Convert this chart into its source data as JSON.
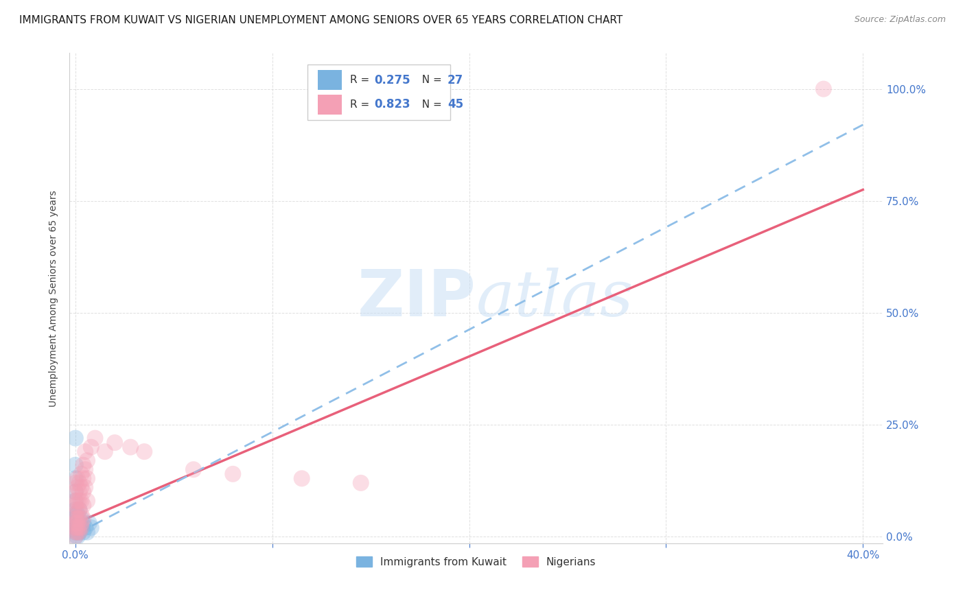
{
  "title": "IMMIGRANTS FROM KUWAIT VS NIGERIAN UNEMPLOYMENT AMONG SENIORS OVER 65 YEARS CORRELATION CHART",
  "source": "Source: ZipAtlas.com",
  "ylabel": "Unemployment Among Seniors over 65 years",
  "x_tick_labels_show": [
    "0.0%",
    "",
    "",
    "",
    "40.0%"
  ],
  "x_ticks": [
    0.0,
    0.1,
    0.2,
    0.3,
    0.4
  ],
  "y_tick_labels": [
    "0.0%",
    "25.0%",
    "50.0%",
    "75.0%",
    "100.0%"
  ],
  "y_ticks": [
    0.0,
    0.25,
    0.5,
    0.75,
    1.0
  ],
  "xlim": [
    -0.003,
    0.41
  ],
  "ylim": [
    -0.015,
    1.08
  ],
  "kuwait_scatter": [
    [
      0.0,
      0.22
    ],
    [
      0.0,
      0.16
    ],
    [
      0.0,
      0.13
    ],
    [
      0.0,
      0.1
    ],
    [
      0.0,
      0.08
    ],
    [
      0.0,
      0.06
    ],
    [
      0.0,
      0.05
    ],
    [
      0.0,
      0.04
    ],
    [
      0.0,
      0.03
    ],
    [
      0.0,
      0.02
    ],
    [
      0.0,
      0.01
    ],
    [
      0.0,
      0.0
    ],
    [
      0.001,
      0.05
    ],
    [
      0.001,
      0.02
    ],
    [
      0.001,
      0.01
    ],
    [
      0.001,
      0.0
    ],
    [
      0.002,
      0.06
    ],
    [
      0.002,
      0.03
    ],
    [
      0.002,
      0.01
    ],
    [
      0.003,
      0.04
    ],
    [
      0.003,
      0.02
    ],
    [
      0.004,
      0.03
    ],
    [
      0.004,
      0.01
    ],
    [
      0.005,
      0.02
    ],
    [
      0.006,
      0.01
    ],
    [
      0.007,
      0.03
    ],
    [
      0.008,
      0.02
    ]
  ],
  "nigerian_scatter": [
    [
      0.0,
      0.12
    ],
    [
      0.0,
      0.1
    ],
    [
      0.0,
      0.08
    ],
    [
      0.0,
      0.07
    ],
    [
      0.0,
      0.05
    ],
    [
      0.0,
      0.04
    ],
    [
      0.0,
      0.03
    ],
    [
      0.0,
      0.02
    ],
    [
      0.0,
      0.01
    ],
    [
      0.0,
      0.0
    ],
    [
      0.001,
      0.13
    ],
    [
      0.001,
      0.11
    ],
    [
      0.001,
      0.08
    ],
    [
      0.001,
      0.06
    ],
    [
      0.001,
      0.04
    ],
    [
      0.001,
      0.03
    ],
    [
      0.001,
      0.02
    ],
    [
      0.001,
      0.01
    ],
    [
      0.002,
      0.12
    ],
    [
      0.002,
      0.1
    ],
    [
      0.002,
      0.08
    ],
    [
      0.002,
      0.06
    ],
    [
      0.002,
      0.04
    ],
    [
      0.002,
      0.02
    ],
    [
      0.002,
      0.01
    ],
    [
      0.003,
      0.14
    ],
    [
      0.003,
      0.11
    ],
    [
      0.003,
      0.08
    ],
    [
      0.003,
      0.05
    ],
    [
      0.003,
      0.03
    ],
    [
      0.003,
      0.02
    ],
    [
      0.004,
      0.16
    ],
    [
      0.004,
      0.13
    ],
    [
      0.004,
      0.1
    ],
    [
      0.004,
      0.07
    ],
    [
      0.004,
      0.04
    ],
    [
      0.005,
      0.19
    ],
    [
      0.005,
      0.15
    ],
    [
      0.005,
      0.11
    ],
    [
      0.006,
      0.17
    ],
    [
      0.006,
      0.13
    ],
    [
      0.006,
      0.08
    ],
    [
      0.008,
      0.2
    ],
    [
      0.01,
      0.22
    ],
    [
      0.015,
      0.19
    ],
    [
      0.02,
      0.21
    ],
    [
      0.028,
      0.2
    ],
    [
      0.035,
      0.19
    ],
    [
      0.06,
      0.15
    ],
    [
      0.08,
      0.14
    ],
    [
      0.115,
      0.13
    ],
    [
      0.145,
      0.12
    ],
    [
      0.38,
      1.0
    ]
  ],
  "kuwait_trendline": [
    [
      0.0,
      0.005
    ],
    [
      0.4,
      0.92
    ]
  ],
  "nigerian_trendline": [
    [
      0.0,
      0.03
    ],
    [
      0.4,
      0.775
    ]
  ],
  "watermark_zip": "ZIP",
  "watermark_atlas": "atlas",
  "kuwait_color": "#7ab3e0",
  "nigerian_color": "#f4a0b5",
  "kuwait_trendline_color": "#90bfe8",
  "nigerian_trendline_color": "#e8607a",
  "grid_color": "#d8d8d8",
  "background_color": "#ffffff",
  "title_fontsize": 11,
  "scatter_size": 300,
  "scatter_alpha": 0.35
}
